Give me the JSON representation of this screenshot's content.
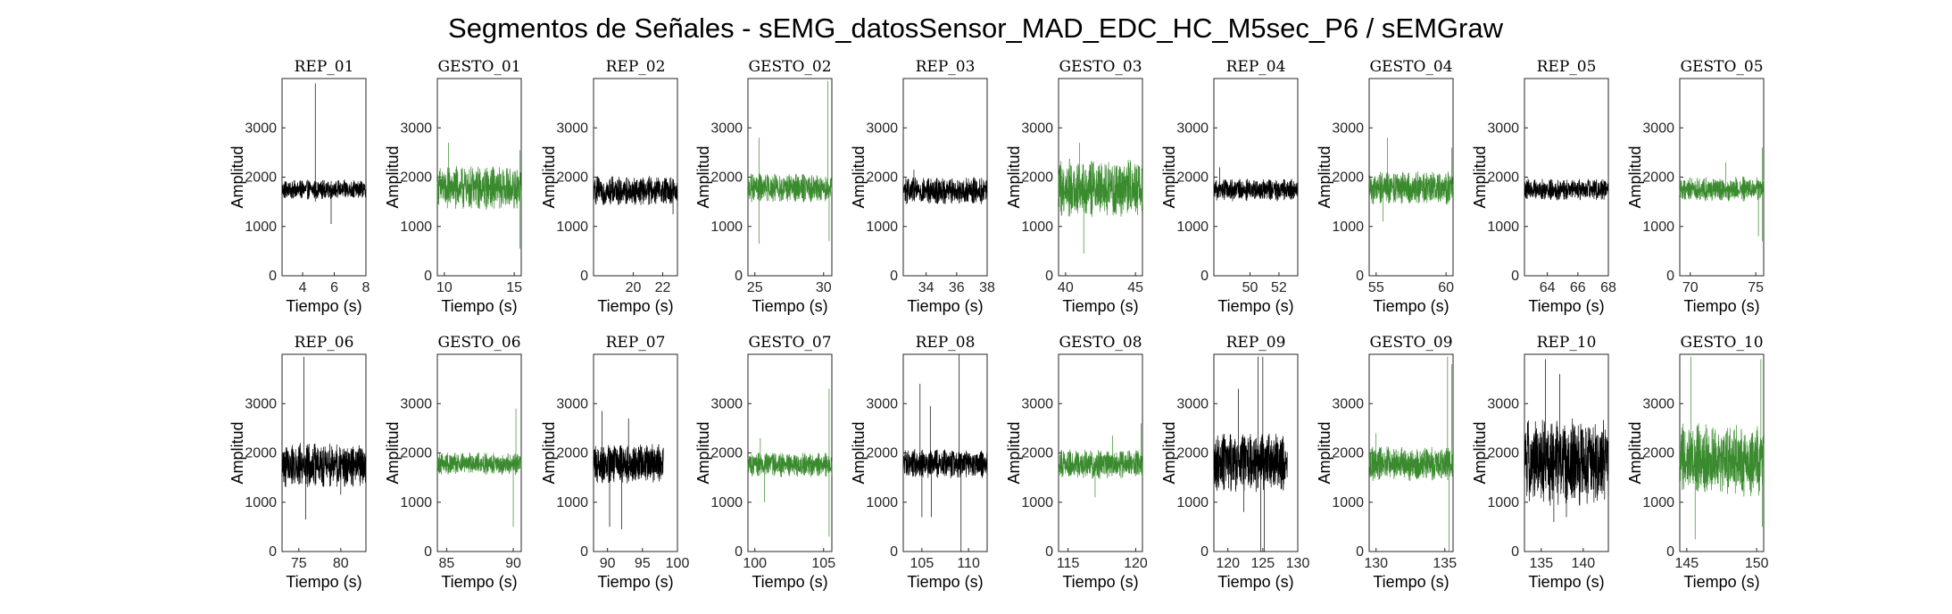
{
  "figure": {
    "title": "Segmentos de Señales - sEMG_datosSensor_MAD_EDC_HC_M5sec_P6 / sEMGraw"
  },
  "colors": {
    "rep": "#000000",
    "gesto": "#3a8a2e",
    "axis": "#262626"
  },
  "chart_data": [
    {
      "type": "line",
      "title": "REP_01",
      "xlabel": "Tiempo (s)",
      "ylabel": "Amplitud",
      "xlim": [
        2.7,
        8
      ],
      "ylim": [
        0,
        4000
      ],
      "xticks": [
        4,
        6,
        8
      ],
      "yticks": [
        0,
        1000,
        2000,
        3000
      ],
      "series": [
        {
          "kind": "rep",
          "baseline": 1750,
          "amplitude": 200,
          "spikes": [
            [
              4.8,
              3900
            ],
            [
              4.8,
              1500
            ],
            [
              5.8,
              1050
            ]
          ]
        }
      ]
    },
    {
      "type": "line",
      "title": "GESTO_01",
      "xlabel": "Tiempo (s)",
      "ylabel": "Amplitud",
      "xlim": [
        9.5,
        15.5
      ],
      "ylim": [
        0,
        4000
      ],
      "xticks": [
        10,
        15
      ],
      "yticks": [
        0,
        1000,
        2000,
        3000
      ],
      "series": [
        {
          "kind": "gesto",
          "baseline": 1780,
          "amplitude": 450,
          "spikes": [
            [
              10.3,
              2700
            ],
            [
              15.4,
              2550
            ],
            [
              15.4,
              550
            ]
          ]
        }
      ]
    },
    {
      "type": "line",
      "title": "REP_02",
      "xlabel": "Tiempo (s)",
      "ylabel": "Amplitud",
      "xlim": [
        17.3,
        23
      ],
      "ylim": [
        0,
        4000
      ],
      "xticks": [
        20,
        22
      ],
      "yticks": [
        0,
        1000,
        2000,
        3000
      ],
      "series": [
        {
          "kind": "rep",
          "baseline": 1720,
          "amplitude": 300,
          "spikes": [
            [
              22.7,
              1250
            ]
          ]
        }
      ]
    },
    {
      "type": "line",
      "title": "GESTO_02",
      "xlabel": "Tiempo (s)",
      "ylabel": "Amplitud",
      "xlim": [
        24.5,
        30.6
      ],
      "ylim": [
        0,
        4000
      ],
      "xticks": [
        25,
        30
      ],
      "yticks": [
        0,
        1000,
        2000,
        3000
      ],
      "series": [
        {
          "kind": "gesto",
          "baseline": 1780,
          "amplitude": 300,
          "spikes": [
            [
              25.3,
              2800
            ],
            [
              25.3,
              650
            ],
            [
              30.3,
              3950
            ],
            [
              30.4,
              700
            ]
          ]
        }
      ]
    },
    {
      "type": "line",
      "title": "REP_03",
      "xlabel": "Tiempo (s)",
      "ylabel": "Amplitud",
      "xlim": [
        32.5,
        38
      ],
      "ylim": [
        0,
        4000
      ],
      "xticks": [
        34,
        36,
        38
      ],
      "yticks": [
        0,
        1000,
        2000,
        3000
      ],
      "series": [
        {
          "kind": "rep",
          "baseline": 1730,
          "amplitude": 280,
          "spikes": [
            [
              33.2,
              2150
            ]
          ]
        }
      ]
    },
    {
      "type": "line",
      "title": "GESTO_03",
      "xlabel": "Tiempo (s)",
      "ylabel": "Amplitud",
      "xlim": [
        39.5,
        45.5
      ],
      "ylim": [
        0,
        4000
      ],
      "xticks": [
        40,
        45
      ],
      "yticks": [
        0,
        1000,
        2000,
        3000
      ],
      "series": [
        {
          "kind": "gesto",
          "baseline": 1780,
          "amplitude": 600,
          "spikes": [
            [
              41.0,
              2700
            ],
            [
              41.3,
              450
            ]
          ]
        }
      ]
    },
    {
      "type": "line",
      "title": "REP_04",
      "xlabel": "Tiempo (s)",
      "ylabel": "Amplitud",
      "xlim": [
        47.5,
        53.3
      ],
      "ylim": [
        0,
        4000
      ],
      "xticks": [
        50,
        52
      ],
      "yticks": [
        0,
        1000,
        2000,
        3000
      ],
      "series": [
        {
          "kind": "rep",
          "baseline": 1740,
          "amplitude": 230,
          "spikes": [
            [
              47.9,
              2200
            ]
          ]
        }
      ]
    },
    {
      "type": "line",
      "title": "GESTO_04",
      "xlabel": "Tiempo (s)",
      "ylabel": "Amplitud",
      "xlim": [
        54.5,
        60.5
      ],
      "ylim": [
        0,
        4000
      ],
      "xticks": [
        55,
        60
      ],
      "yticks": [
        0,
        1000,
        2000,
        3000
      ],
      "series": [
        {
          "kind": "gesto",
          "baseline": 1780,
          "amplitude": 350,
          "spikes": [
            [
              55.8,
              2800
            ],
            [
              55.5,
              1100
            ],
            [
              60.4,
              2600
            ]
          ]
        }
      ]
    },
    {
      "type": "line",
      "title": "REP_05",
      "xlabel": "Tiempo (s)",
      "ylabel": "Amplitud",
      "xlim": [
        62.5,
        68
      ],
      "ylim": [
        0,
        4000
      ],
      "xticks": [
        64,
        66,
        68
      ],
      "yticks": [
        0,
        1000,
        2000,
        3000
      ],
      "series": [
        {
          "kind": "rep",
          "baseline": 1750,
          "amplitude": 220,
          "spikes": []
        }
      ]
    },
    {
      "type": "line",
      "title": "GESTO_05",
      "xlabel": "Tiempo (s)",
      "ylabel": "Amplitud",
      "xlim": [
        69.2,
        75.6
      ],
      "ylim": [
        0,
        4000
      ],
      "xticks": [
        70,
        75
      ],
      "yticks": [
        0,
        1000,
        2000,
        3000
      ],
      "series": [
        {
          "kind": "gesto",
          "baseline": 1760,
          "amplitude": 250,
          "spikes": [
            [
              72.7,
              2300
            ],
            [
              75.2,
              800
            ],
            [
              75.5,
              2600
            ],
            [
              75.5,
              700
            ]
          ]
        }
      ]
    },
    {
      "type": "line",
      "title": "REP_06",
      "xlabel": "Tiempo (s)",
      "ylabel": "Amplitud",
      "xlim": [
        73,
        83
      ],
      "ylim": [
        0,
        4000
      ],
      "xticks": [
        75,
        80
      ],
      "yticks": [
        0,
        1000,
        2000,
        3000
      ],
      "series": [
        {
          "kind": "rep",
          "baseline": 1750,
          "amplitude": 450,
          "spikes": [
            [
              75.6,
              3950
            ],
            [
              75.8,
              650
            ],
            [
              80.0,
              1150
            ]
          ]
        }
      ]
    },
    {
      "type": "line",
      "title": "GESTO_06",
      "xlabel": "Tiempo (s)",
      "ylabel": "Amplitud",
      "xlim": [
        84.3,
        90.6
      ],
      "ylim": [
        0,
        4000
      ],
      "xticks": [
        85,
        90
      ],
      "yticks": [
        0,
        1000,
        2000,
        3000
      ],
      "series": [
        {
          "kind": "gesto",
          "baseline": 1780,
          "amplitude": 230,
          "spikes": [
            [
              90.2,
              2900
            ],
            [
              90.0,
              500
            ]
          ]
        }
      ]
    },
    {
      "type": "line",
      "title": "REP_07",
      "xlabel": "Tiempo (s)",
      "ylabel": "Amplitud",
      "xlim": [
        88,
        100
      ],
      "ylim": [
        0,
        4000
      ],
      "xticks": [
        90,
        95,
        100
      ],
      "yticks": [
        0,
        1000,
        2000,
        3000
      ],
      "series": [
        {
          "kind": "rep",
          "baseline": 1780,
          "amplitude": 400,
          "end": 98,
          "spikes": [
            [
              89.2,
              2850
            ],
            [
              90.3,
              500
            ],
            [
              92.0,
              450
            ],
            [
              93.0,
              2700
            ]
          ]
        }
      ]
    },
    {
      "type": "line",
      "title": "GESTO_07",
      "xlabel": "Tiempo (s)",
      "ylabel": "Amplitud",
      "xlim": [
        99.5,
        105.6
      ],
      "ylim": [
        0,
        4000
      ],
      "xticks": [
        100,
        105
      ],
      "yticks": [
        0,
        1000,
        2000,
        3000
      ],
      "series": [
        {
          "kind": "gesto",
          "baseline": 1760,
          "amplitude": 250,
          "spikes": [
            [
              100.4,
              2300
            ],
            [
              100.7,
              1000
            ],
            [
              105.4,
              3300
            ],
            [
              105.4,
              300
            ]
          ]
        }
      ]
    },
    {
      "type": "line",
      "title": "REP_08",
      "xlabel": "Tiempo (s)",
      "ylabel": "Amplitud",
      "xlim": [
        103,
        112
      ],
      "ylim": [
        0,
        4000
      ],
      "xticks": [
        105,
        110
      ],
      "yticks": [
        0,
        1000,
        2000,
        3000
      ],
      "series": [
        {
          "kind": "rep",
          "baseline": 1780,
          "amplitude": 300,
          "spikes": [
            [
              104.8,
              3400
            ],
            [
              105.0,
              700
            ],
            [
              105.9,
              2950
            ],
            [
              106.0,
              700
            ],
            [
              109.0,
              4000
            ],
            [
              109.2,
              0
            ]
          ]
        }
      ]
    },
    {
      "type": "line",
      "title": "GESTO_08",
      "xlabel": "Tiempo (s)",
      "ylabel": "Amplitud",
      "xlim": [
        114.3,
        120.5
      ],
      "ylim": [
        0,
        4000
      ],
      "xticks": [
        115,
        120
      ],
      "yticks": [
        0,
        1000,
        2000,
        3000
      ],
      "series": [
        {
          "kind": "gesto",
          "baseline": 1770,
          "amplitude": 300,
          "spikes": [
            [
              117.0,
              1100
            ],
            [
              118.3,
              2350
            ],
            [
              120.4,
              2600
            ]
          ]
        }
      ]
    },
    {
      "type": "line",
      "title": "REP_09",
      "xlabel": "Tiempo (s)",
      "ylabel": "Amplitud",
      "xlim": [
        118,
        130
      ],
      "ylim": [
        0,
        4000
      ],
      "xticks": [
        120,
        125,
        130
      ],
      "yticks": [
        0,
        1000,
        2000,
        3000
      ],
      "series": [
        {
          "kind": "rep",
          "baseline": 1800,
          "amplitude": 600,
          "end": 128.5,
          "spikes": [
            [
              121.5,
              3300
            ],
            [
              122.3,
              800
            ],
            [
              124.3,
              3950
            ],
            [
              124.7,
              0
            ],
            [
              125.0,
              3950
            ],
            [
              125.2,
              0
            ]
          ]
        }
      ]
    },
    {
      "type": "line",
      "title": "GESTO_09",
      "xlabel": "Tiempo (s)",
      "ylabel": "Amplitud",
      "xlim": [
        129.5,
        135.6
      ],
      "ylim": [
        0,
        4000
      ],
      "xticks": [
        130,
        135
      ],
      "yticks": [
        0,
        1000,
        2000,
        3000
      ],
      "series": [
        {
          "kind": "gesto",
          "baseline": 1780,
          "amplitude": 350,
          "spikes": [
            [
              130.0,
              2400
            ],
            [
              135.2,
              3950
            ],
            [
              135.3,
              0
            ],
            [
              135.5,
              3800
            ]
          ]
        }
      ]
    },
    {
      "type": "line",
      "title": "REP_10",
      "xlabel": "Tiempo (s)",
      "ylabel": "Amplitud",
      "xlim": [
        133,
        143
      ],
      "ylim": [
        0,
        4000
      ],
      "xticks": [
        135,
        140
      ],
      "yticks": [
        0,
        1000,
        2000,
        3000
      ],
      "series": [
        {
          "kind": "rep",
          "baseline": 1800,
          "amplitude": 900,
          "spikes": [
            [
              135.5,
              3900
            ],
            [
              136.0,
              1100
            ],
            [
              136.5,
              600
            ],
            [
              137.2,
              3600
            ],
            [
              138.0,
              700
            ]
          ]
        }
      ]
    },
    {
      "type": "line",
      "title": "GESTO_10",
      "xlabel": "Tiempo (s)",
      "ylabel": "Amplitud",
      "xlim": [
        144.5,
        150.5
      ],
      "ylim": [
        0,
        4000
      ],
      "xticks": [
        145,
        150
      ],
      "yticks": [
        0,
        1000,
        2000,
        3000
      ],
      "series": [
        {
          "kind": "gesto",
          "baseline": 1850,
          "amplitude": 750,
          "spikes": [
            [
              145.3,
              3950
            ],
            [
              145.6,
              250
            ],
            [
              150.3,
              3900
            ],
            [
              150.4,
              500
            ]
          ]
        }
      ]
    }
  ]
}
